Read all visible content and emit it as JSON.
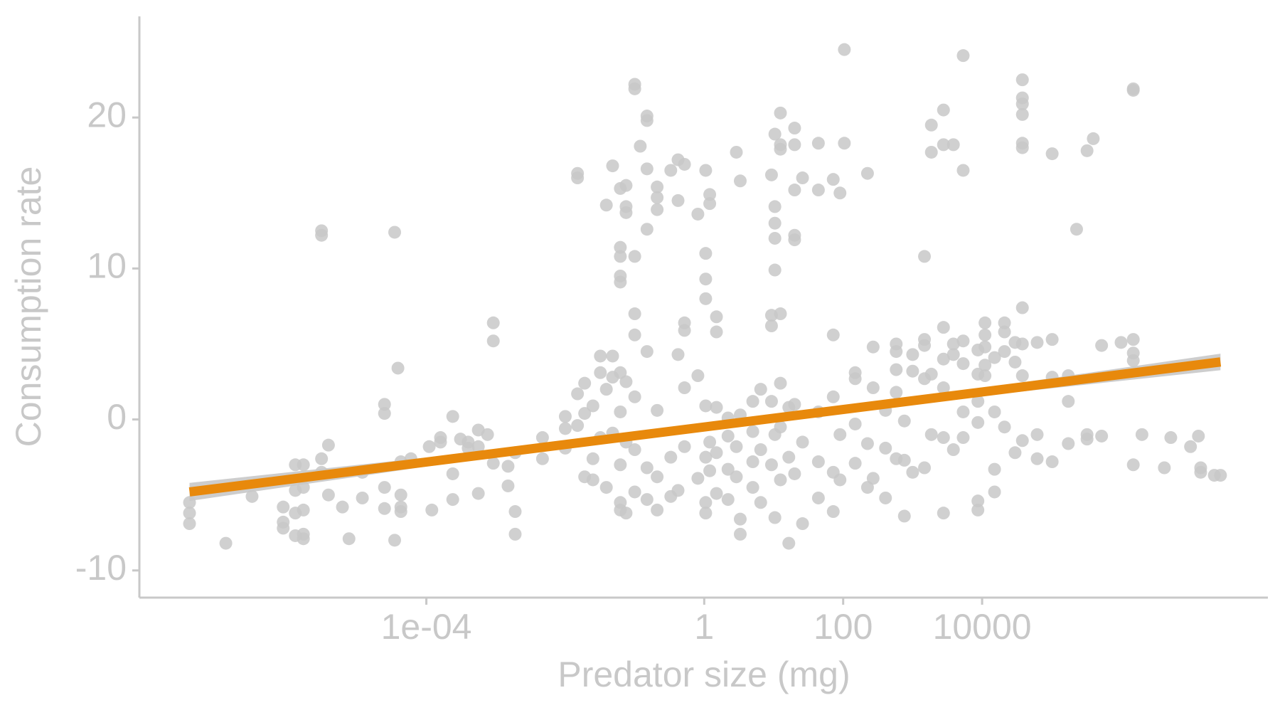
{
  "chart_data": {
    "type": "scatter",
    "x_label": "Predator size (mg)",
    "y_label": "Consumption rate",
    "xscale": "log",
    "xlim": [
      7.4e-09,
      130000000.0
    ],
    "ylim": [
      -11.8,
      26.7
    ],
    "xticks": [
      {
        "value": 0.0001,
        "label": "1e-04"
      },
      1,
      100,
      10000
    ],
    "yticks": [
      -10,
      0,
      10,
      20
    ],
    "grid": false,
    "series": [
      {
        "color": "#c8c8c8",
        "x": [
          3.9e-08,
          3.9e-08,
          3.9e-08,
          1.3e-07,
          3.1e-07,
          8.7e-07,
          8.7e-07,
          8.7e-07,
          1.3e-06,
          1.3e-06,
          1.3e-06,
          1.3e-06,
          1.7e-06,
          1.7e-06,
          1.7e-06,
          1.7e-06,
          1.7e-06,
          3.1e-06,
          3.1e-06,
          3.1e-06,
          3.1e-06,
          3.9e-06,
          3.9e-06,
          6.2e-06,
          7.7e-06,
          1.2e-05,
          1.2e-05,
          2.5e-05,
          2.5e-05,
          2.5e-05,
          2.5e-05,
          3.5e-05,
          3.5e-05,
          3.9e-05,
          4.3e-05,
          4.3e-05,
          4.3e-05,
          4.3e-05,
          6e-05,
          0.00011,
          0.00012,
          0.00016,
          0.00016,
          0.00024,
          0.00024,
          0.00024,
          0.00031,
          0.0004,
          0.0004,
          0.00056,
          0.00056,
          0.00056,
          0.00076,
          0.00092,
          0.00092,
          0.00092,
          0.0015,
          0.0015,
          0.0019,
          0.0019,
          0.0019,
          0.0047,
          0.0047,
          0.01,
          0.01,
          0.01,
          0.015,
          0.015,
          0.015,
          0.015,
          0.019,
          0.019,
          0.019,
          0.025,
          0.025,
          0.025,
          0.032,
          0.032,
          0.032,
          0.039,
          0.039,
          0.039,
          0.048,
          0.048,
          0.048,
          0.048,
          0.062,
          0.062,
          0.062,
          0.062,
          0.062,
          0.062,
          0.062,
          0.062,
          0.062,
          0.062,
          0.075,
          0.075,
          0.075,
          0.075,
          0.075,
          0.075,
          0.1,
          0.1,
          0.1,
          0.1,
          0.1,
          0.1,
          0.1,
          0.1,
          0.12,
          0.15,
          0.15,
          0.15,
          0.15,
          0.15,
          0.15,
          0.15,
          0.21,
          0.21,
          0.21,
          0.21,
          0.21,
          0.21,
          0.33,
          0.33,
          0.33,
          0.42,
          0.42,
          0.42,
          0.42,
          0.52,
          0.52,
          0.52,
          0.52,
          0.52,
          0.81,
          0.81,
          0.81,
          1.05,
          1.05,
          1.05,
          1.05,
          1.05,
          1.05,
          1.05,
          1.05,
          1.2,
          1.2,
          1.2,
          1.2,
          1.5,
          1.5,
          1.5,
          1.5,
          1.5,
          2.2,
          2.2,
          2.2,
          2.2,
          2.9,
          2.9,
          2.9,
          3.3,
          3.3,
          3.3,
          3.3,
          5,
          5,
          5,
          5,
          6.5,
          6.5,
          6.5,
          9.3,
          9.3,
          9.3,
          9.3,
          9.3,
          10.4,
          10.4,
          10.4,
          10.4,
          10.4,
          10.4,
          10.4,
          12.5,
          12.5,
          12.5,
          12.5,
          12.5,
          12.5,
          12.5,
          16.5,
          16.5,
          16.5,
          20,
          20,
          20,
          20,
          20,
          20,
          20,
          26,
          26,
          26,
          44,
          44,
          44,
          44,
          44,
          72,
          72,
          72,
          72,
          72,
          90,
          90,
          90,
          104,
          104,
          149,
          149,
          149,
          149,
          224,
          224,
          224,
          270,
          270,
          270,
          407,
          407,
          407,
          580,
          580,
          580,
          580,
          580,
          760,
          760,
          760,
          1000,
          1000,
          1000,
          1480,
          1480,
          1480,
          1480,
          1480,
          1860,
          1860,
          1860,
          1860,
          2780,
          2780,
          2780,
          2780,
          2780,
          2780,
          2780,
          3860,
          3860,
          3860,
          3860,
          5340,
          5340,
          5340,
          5340,
          5340,
          5340,
          8700,
          8700,
          8700,
          8700,
          8700,
          8700,
          11000,
          11000,
          11000,
          11000,
          11000,
          15100,
          15100,
          15100,
          15100,
          21000,
          21000,
          21000,
          21000,
          29800,
          29800,
          29800,
          38000,
          38000,
          38000,
          38000,
          38000,
          38000,
          38000,
          38000,
          38000,
          38000,
          62000,
          62000,
          62000,
          102000,
          102000,
          102000,
          102000,
          174000,
          174000,
          174000,
          229000,
          324000,
          324000,
          324000,
          398000,
          525000,
          525000,
          1000000,
          1500000,
          1500000,
          1500000,
          1500000,
          1500000,
          1500000,
          2000000,
          4200000,
          5200000,
          10000000,
          13000000,
          14000000,
          14000000,
          22000000,
          27000000
        ],
        "values": [
          -5.5,
          -6.2,
          -6.9,
          -8.2,
          -5.1,
          -5.8,
          -6.8,
          -7.2,
          -3.0,
          -6.2,
          -7.7,
          -4.7,
          -3.0,
          -4.5,
          -6.0,
          -7.9,
          -7.6,
          12.5,
          12.2,
          -2.6,
          -3.5,
          -1.7,
          -5.0,
          -5.8,
          -7.9,
          -5.2,
          -3.5,
          1.0,
          0.4,
          -4.5,
          -5.9,
          12.4,
          -8.0,
          3.4,
          -5.0,
          -5.8,
          -6.1,
          -2.8,
          -2.6,
          -1.8,
          -6.0,
          -1.2,
          -1.5,
          -5.3,
          0.2,
          -3.6,
          -1.3,
          -1.9,
          -1.5,
          -4.9,
          -1.8,
          -0.7,
          -1.0,
          6.4,
          5.2,
          -2.9,
          -4.4,
          -3.1,
          -7.6,
          -6.1,
          -2.2,
          -2.6,
          -1.2,
          -0.6,
          0.2,
          -1.9,
          16.3,
          16.0,
          1.7,
          -0.4,
          2.4,
          0.4,
          -3.8,
          -4.0,
          -2.6,
          0.9,
          4.2,
          3.1,
          -1.2,
          14.2,
          -4.5,
          2.0,
          16.8,
          4.2,
          2.8,
          -0.9,
          11.4,
          10.8,
          9.5,
          9.1,
          15.3,
          -5.5,
          -6.0,
          -3.0,
          0.5,
          3.1,
          14.1,
          13.7,
          15.5,
          -6.2,
          2.5,
          -1.5,
          22.2,
          21.9,
          10.8,
          7.0,
          5.6,
          -4.8,
          -2.0,
          1.5,
          18.1,
          20.1,
          19.8,
          16.6,
          12.6,
          4.5,
          -3.2,
          -5.3,
          15.4,
          14.7,
          13.9,
          0.6,
          -6.0,
          -3.8,
          16.5,
          -5.1,
          -2.5,
          17.2,
          14.5,
          4.3,
          -4.7,
          16.9,
          5.9,
          6.4,
          2.1,
          -1.8,
          13.6,
          2.9,
          -3.9,
          16.5,
          11.0,
          9.3,
          8.0,
          -5.5,
          -6.2,
          -2.5,
          0.9,
          14.9,
          14.3,
          -1.5,
          -3.4,
          6.8,
          5.8,
          0.8,
          -4.9,
          -2.2,
          -5.3,
          -3.3,
          -1.1,
          0.1,
          17.7,
          -3.8,
          -1.8,
          15.8,
          -7.6,
          -6.6,
          0.3,
          -2.8,
          -0.8,
          1.2,
          -4.5,
          2.0,
          -2.0,
          -5.5,
          16.2,
          6.9,
          6.2,
          1.2,
          -3.0,
          18.9,
          14.1,
          13.0,
          12.0,
          9.9,
          -1.0,
          -6.5,
          20.3,
          18.2,
          17.9,
          7.0,
          2.4,
          -0.5,
          -4.0,
          -8.2,
          -2.5,
          0.8,
          19.3,
          18.2,
          15.2,
          12.2,
          11.9,
          -3.6,
          1.0,
          16.0,
          -6.9,
          -1.5,
          18.3,
          15.2,
          -5.2,
          0.5,
          -2.8,
          15.9,
          5.6,
          -6.1,
          -3.5,
          1.5,
          15.0,
          -4.0,
          -1.0,
          24.5,
          18.3,
          3.1,
          2.7,
          -0.3,
          -2.9,
          16.3,
          -4.5,
          -1.6,
          4.8,
          2.1,
          -3.9,
          -5.2,
          -1.9,
          0.6,
          5.0,
          4.5,
          3.3,
          1.8,
          -2.6,
          -6.4,
          -2.7,
          -0.1,
          4.3,
          3.2,
          -3.5,
          10.8,
          5.3,
          4.9,
          2.7,
          -3.2,
          17.7,
          19.5,
          3.0,
          -1.0,
          20.5,
          18.2,
          6.1,
          4.0,
          2.1,
          -6.2,
          -1.2,
          18.2,
          5.0,
          4.3,
          -2.0,
          24.1,
          16.5,
          5.2,
          3.7,
          0.5,
          -1.2,
          -6.0,
          -5.4,
          4.6,
          3.0,
          1.2,
          -0.2,
          6.4,
          5.6,
          4.8,
          3.6,
          2.9,
          -4.8,
          -3.3,
          4.1,
          0.5,
          6.4,
          5.8,
          4.5,
          -0.5,
          5.1,
          3.8,
          -2.2,
          22.5,
          21.3,
          20.9,
          20.2,
          18.3,
          18.0,
          7.4,
          5.0,
          2.9,
          -1.4,
          5.1,
          -2.6,
          -1.0,
          17.6,
          5.3,
          2.8,
          -2.8,
          1.2,
          2.9,
          -1.6,
          12.6,
          17.8,
          -1.0,
          -1.3,
          18.6,
          4.9,
          -1.1,
          5.1,
          21.9,
          21.8,
          5.3,
          4.4,
          3.9,
          -3.0,
          -1.0,
          -3.2,
          -1.2,
          -1.8,
          -1.1,
          -3.2,
          -3.5,
          -3.7,
          -3.7
        ]
      }
    ],
    "fit": {
      "color": "#e8890c",
      "band_color": "#c8c8c8",
      "x": [
        3.9e-08,
        0.0001,
        1,
        10000,
        27000000.0
      ],
      "values": [
        -4.8,
        -2.82,
        -0.5,
        1.82,
        3.81
      ],
      "lower": [
        -5.4,
        -3.12,
        -0.7,
        1.57,
        3.26
      ],
      "upper": [
        -4.2,
        -2.52,
        -0.3,
        2.07,
        4.36
      ]
    }
  }
}
